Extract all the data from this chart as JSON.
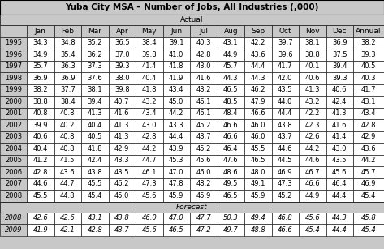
{
  "title": "Yuba City MSA – Number of Jobs, All Industries (,000)",
  "col_headers": [
    "",
    "Jan",
    "Feb",
    "Mar",
    "Apr",
    "May",
    "Jun",
    "Jul",
    "Aug",
    "Sep",
    "Oct",
    "Nov",
    "Dec",
    "Annual"
  ],
  "actual_label": "Actual",
  "forecast_label": "Forecast",
  "actual_rows": [
    [
      "1995",
      "34.3",
      "34.8",
      "35.2",
      "36.5",
      "38.4",
      "39.1",
      "40.3",
      "43.1",
      "42.2",
      "39.7",
      "38.1",
      "36.9",
      "38.2"
    ],
    [
      "1996",
      "34.9",
      "35.4",
      "36.2",
      "37.0",
      "39.8",
      "41.0",
      "42.8",
      "44.9",
      "43.6",
      "39.6",
      "38.8",
      "37.5",
      "39.3"
    ],
    [
      "1997",
      "35.7",
      "36.3",
      "37.3",
      "39.3",
      "41.4",
      "41.8",
      "43.0",
      "45.7",
      "44.4",
      "41.7",
      "40.1",
      "39.4",
      "40.5"
    ],
    [
      "1998",
      "36.9",
      "36.9",
      "37.6",
      "38.0",
      "40.4",
      "41.9",
      "41.6",
      "44.3",
      "44.3",
      "42.0",
      "40.6",
      "39.3",
      "40.3"
    ],
    [
      "1999",
      "38.2",
      "37.7",
      "38.1",
      "39.8",
      "41.8",
      "43.4",
      "43.2",
      "46.5",
      "46.2",
      "43.5",
      "41.3",
      "40.6",
      "41.7"
    ],
    [
      "2000",
      "38.8",
      "38.4",
      "39.4",
      "40.7",
      "43.2",
      "45.0",
      "46.1",
      "48.5",
      "47.9",
      "44.0",
      "43.2",
      "42.4",
      "43.1"
    ],
    [
      "2001",
      "40.8",
      "40.8",
      "41.3",
      "41.6",
      "43.4",
      "44.2",
      "46.1",
      "48.4",
      "46.6",
      "44.4",
      "42.2",
      "41.3",
      "43.4"
    ],
    [
      "2002",
      "39.9",
      "40.2",
      "40.4",
      "41.3",
      "43.0",
      "43.3",
      "45.2",
      "46.6",
      "46.0",
      "43.8",
      "42.3",
      "41.6",
      "42.8"
    ],
    [
      "2003",
      "40.6",
      "40.8",
      "40.5",
      "41.3",
      "42.8",
      "44.4",
      "43.7",
      "46.6",
      "46.0",
      "43.7",
      "42.6",
      "41.4",
      "42.9"
    ],
    [
      "2004",
      "40.4",
      "40.8",
      "41.8",
      "42.9",
      "44.2",
      "43.9",
      "45.2",
      "46.4",
      "45.5",
      "44.6",
      "44.2",
      "43.0",
      "43.6"
    ],
    [
      "2005",
      "41.2",
      "41.5",
      "42.4",
      "43.3",
      "44.7",
      "45.3",
      "45.6",
      "47.6",
      "46.5",
      "44.5",
      "44.6",
      "43.5",
      "44.2"
    ],
    [
      "2006",
      "42.8",
      "43.6",
      "43.8",
      "43.5",
      "46.1",
      "47.0",
      "46.0",
      "48.6",
      "48.0",
      "46.9",
      "46.7",
      "45.6",
      "45.7"
    ],
    [
      "2007",
      "44.6",
      "44.7",
      "45.5",
      "46.2",
      "47.3",
      "47.8",
      "48.2",
      "49.5",
      "49.1",
      "47.3",
      "46.6",
      "46.4",
      "46.9"
    ],
    [
      "2008",
      "45.5",
      "44.8",
      "45.4",
      "45.0",
      "45.6",
      "45.9",
      "45.9",
      "46.5",
      "45.9",
      "45.2",
      "44.9",
      "44.4",
      "45.4"
    ]
  ],
  "forecast_rows": [
    [
      "2008",
      "42.6",
      "42.6",
      "43.1",
      "43.8",
      "46.0",
      "47.0",
      "47.7",
      "50.3",
      "49.4",
      "46.8",
      "45.6",
      "44.3",
      "45.8"
    ],
    [
      "2009",
      "41.9",
      "42.1",
      "42.8",
      "43.7",
      "45.6",
      "46.5",
      "47.2",
      "49.7",
      "48.8",
      "46.6",
      "45.4",
      "44.4",
      "45.4"
    ]
  ],
  "bg_color": "#c8c8c8",
  "cell_bg": "#ffffff",
  "border_color": "#000000",
  "title_fontsize": 7.5,
  "header_fontsize": 6.5,
  "cell_fontsize": 6.0,
  "fig_width": 4.73,
  "fig_height": 3.07,
  "dpi": 100
}
